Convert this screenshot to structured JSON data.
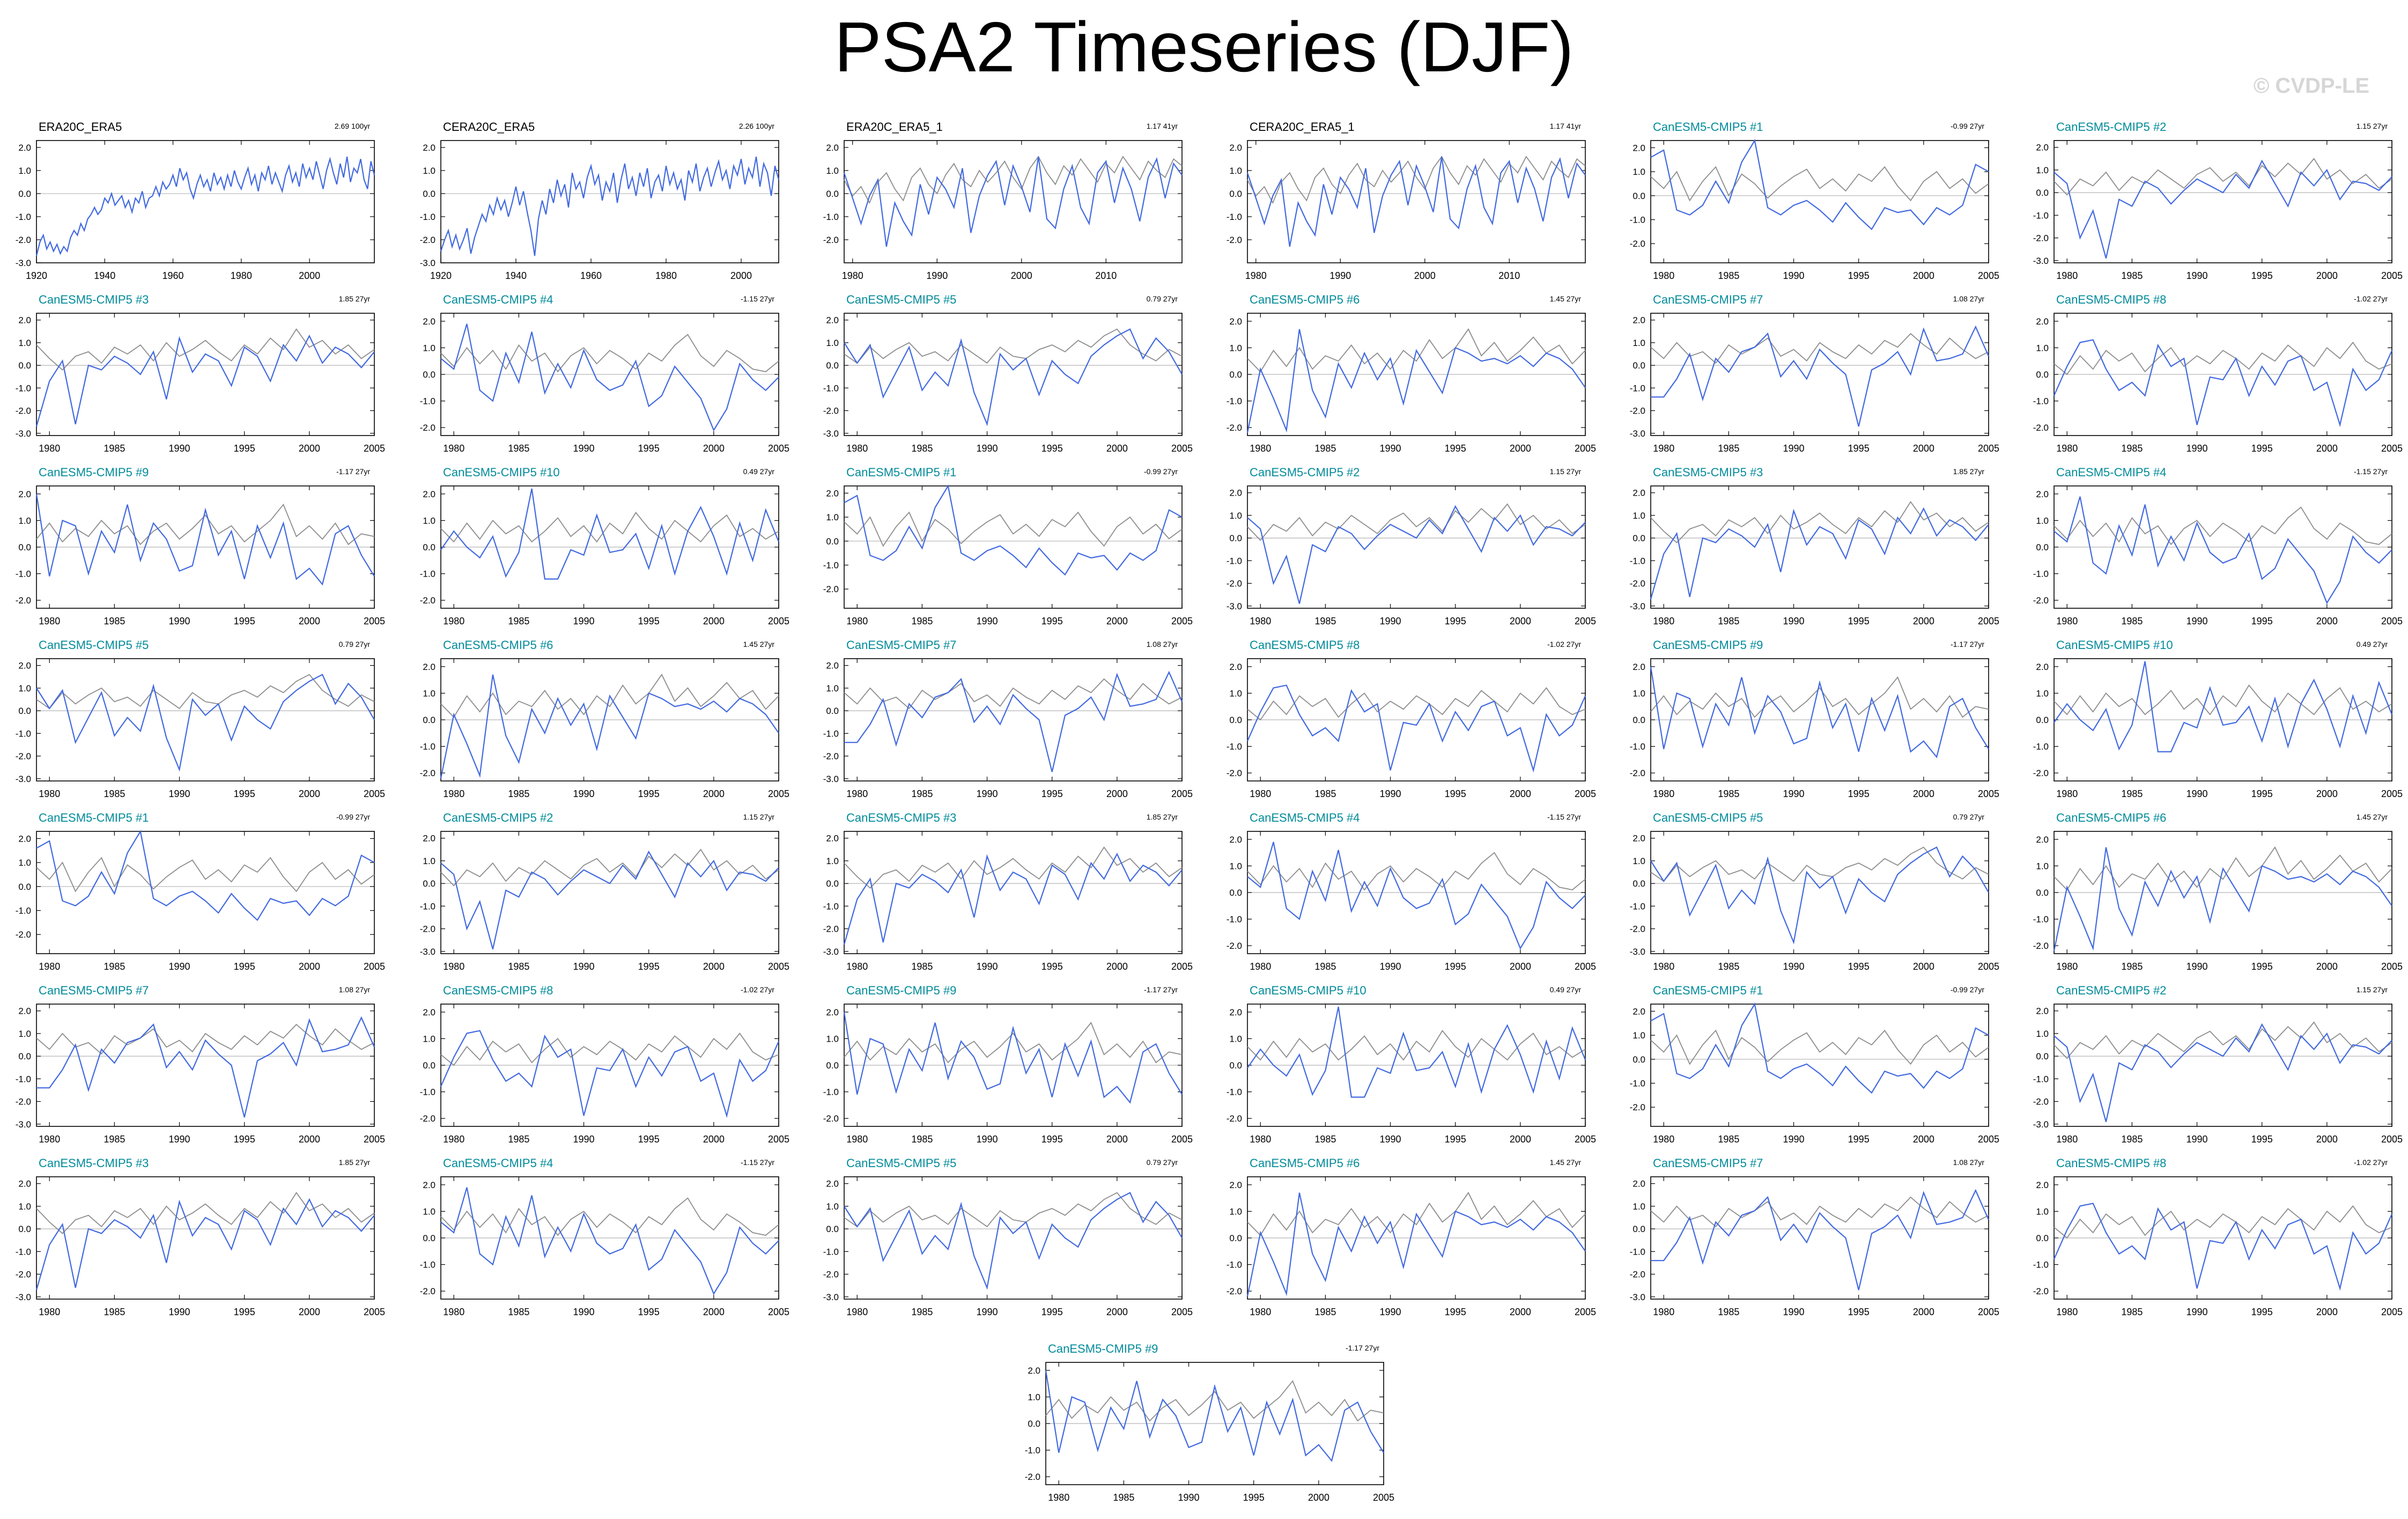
{
  "page": {
    "title": "PSA2 Timeseries (DJF)",
    "watermark": "© CVDP-LE"
  },
  "colors": {
    "observed": "#4169e1",
    "reference": "#8c8c8c",
    "member_title": "#008b9a",
    "obs_title": "#000000",
    "zero_line": "#b4b4b4"
  },
  "series_style": {
    "CanESM5-CMIP5": "member",
    "ERA20C_ERA5": "obs",
    "CERA20C_ERA5": "obs",
    "ERA20C_ERA5_1": "obs",
    "CERA20C_ERA5_1": "obs"
  },
  "chart_data": [
    {
      "type": "line",
      "title": "ERA20C_ERA5",
      "trend": "2.69 100yr",
      "x_start": 1920,
      "x_end": 2019,
      "xticks": [
        1920,
        1940,
        1960,
        1980,
        2000
      ],
      "ylim": [
        -3,
        2.3
      ],
      "yticks": [
        2,
        1,
        0,
        -1,
        -2,
        -3
      ],
      "values": [
        -2.7,
        -2.1,
        -1.8,
        -2.4,
        -2.1,
        -2.5,
        -2.2,
        -2.6,
        -2.3,
        -2.5,
        -1.9,
        -1.6,
        -1.8,
        -1.3,
        -1.6,
        -1.1,
        -0.9,
        -0.6,
        -0.9,
        -0.7,
        -0.2,
        -0.4,
        0,
        -0.5,
        -0.3,
        -0.1,
        -0.6,
        -0.3,
        -0.8,
        -0.2,
        -0.4,
        0.1,
        -0.6,
        -0.2,
        -0.1,
        0.3,
        -0.1,
        0.5,
        0.2,
        0.4,
        0.8,
        0.3,
        1.1,
        0.6,
        0.9,
        0.2,
        -0.2,
        0.4,
        0.8,
        0.3,
        0.6,
        0.1,
        0.9,
        0.4,
        0.7,
        0.2,
        0.8,
        0.3,
        1.0,
        0.5,
        0.2,
        0.7,
        1.1,
        0.4,
        0.8,
        0.1,
        0.9,
        0.6,
        1.2,
        0.4,
        0.9,
        0.5,
        0.1,
        0.8,
        1.2,
        0.5,
        0.9,
        0.3,
        1.3,
        0.7,
        1.1,
        0.6,
        1.4,
        0.8,
        0.2,
        1.0,
        1.5,
        0.9,
        0.4,
        1.3,
        0.7,
        1.6,
        0.5,
        1.1,
        0.9,
        1.5,
        0.6,
        0.2,
        1.4,
        0.8
      ],
      "ref": []
    },
    {
      "type": "line",
      "title": "CERA20C_ERA5",
      "trend": "2.26 100yr",
      "x_start": 1920,
      "x_end": 2010,
      "xticks": [
        1920,
        1940,
        1960,
        1980,
        2000
      ],
      "ylim": [
        -3,
        2.3
      ],
      "yticks": [
        2,
        1,
        0,
        -1,
        -2,
        -3
      ],
      "values": [
        -2.5,
        -2.0,
        -1.6,
        -2.3,
        -1.8,
        -2.4,
        -2.0,
        -1.5,
        -2.6,
        -1.9,
        -1.4,
        -0.9,
        -1.2,
        -0.5,
        -0.9,
        -0.2,
        -0.7,
        -0.3,
        -1.0,
        -0.4,
        0.3,
        -0.5,
        0.1,
        -0.8,
        -1.6,
        -2.7,
        -1.1,
        -0.3,
        -0.9,
        0.2,
        -0.4,
        0.6,
        -0.1,
        0.4,
        -0.6,
        0.9,
        0.2,
        0.5,
        -0.2,
        0.7,
        1.2,
        0.4,
        0.8,
        -0.3,
        0.5,
        0.1,
        0.9,
        -0.4,
        0.6,
        1.3,
        0.2,
        0.7,
        -0.1,
        0.9,
        0.3,
        1.1,
        -0.2,
        0.5,
        0.8,
        0.1,
        1.2,
        0.4,
        0.9,
        0.2,
        0.6,
        -0.3,
        1.0,
        0.5,
        1.3,
        0.1,
        0.7,
        1.1,
        0.3,
        0.9,
        1.4,
        0.6,
        1.0,
        0.2,
        1.2,
        0.8,
        1.5,
        0.4,
        1.1,
        0.7,
        1.6,
        0.3,
        1.3,
        0.9,
        -0.1,
        1.2,
        0.6
      ],
      "ref": []
    },
    {
      "type": "line",
      "title": "ERA20C_ERA5_1",
      "trend": "1.17 41yr",
      "x_start": 1979,
      "x_end": 2019,
      "xticks": [
        1980,
        1990,
        2000,
        2010
      ],
      "ylim": [
        -3,
        2.3
      ],
      "yticks": [
        2,
        1,
        0,
        -1,
        -2
      ],
      "values": [
        0.9,
        -0.2,
        -1.3,
        -0.1,
        0.6,
        -2.3,
        -0.4,
        -1.2,
        -1.8,
        0.4,
        -0.9,
        0.7,
        0.2,
        -0.6,
        1.1,
        -1.7,
        -0.1,
        0.8,
        1.4,
        -0.5,
        1.2,
        0.3,
        -0.8,
        1.6,
        -1.1,
        -1.5,
        0.2,
        1.2,
        -0.6,
        -1.3,
        0.9,
        1.4,
        -0.4,
        1.1,
        0.2,
        -1.2,
        0.7,
        1.5,
        -0.2,
        1.3,
        0.8
      ],
      "ref": [
        0.6,
        -0.1,
        0.3,
        -0.4,
        0.5,
        0.9,
        0.2,
        -0.3,
        0.7,
        1.1,
        0.4,
        0.0,
        0.8,
        1.3,
        0.6,
        0.3,
        1.0,
        0.5,
        0.9,
        1.4,
        0.7,
        0.2,
        1.1,
        1.6,
        0.9,
        0.4,
        1.2,
        0.8,
        1.5,
        1.0,
        0.5,
        1.3,
        0.9,
        1.6,
        1.1,
        0.6,
        1.4,
        1.0,
        0.7,
        1.5,
        1.2
      ]
    },
    {
      "type": "line",
      "title": "CERA20C_ERA5_1",
      "trend": "1.17 41yr",
      "x_start": 1979,
      "x_end": 2019,
      "xticks": [
        1980,
        1990,
        2000,
        2010
      ],
      "ylim": [
        -3,
        2.3
      ],
      "yticks": [
        2,
        1,
        0,
        -1,
        -2
      ],
      "values": [
        0.9,
        -0.2,
        -1.3,
        -0.1,
        0.6,
        -2.3,
        -0.4,
        -1.2,
        -1.8,
        0.4,
        -0.9,
        0.7,
        0.2,
        -0.6,
        1.1,
        -1.7,
        -0.1,
        0.8,
        1.4,
        -0.5,
        1.2,
        0.3,
        -0.8,
        1.6,
        -1.1,
        -1.5,
        0.2,
        1.2,
        -0.6,
        -1.3,
        0.9,
        1.4,
        -0.4,
        1.1,
        0.2,
        -1.2,
        0.7,
        1.5,
        -0.2,
        1.3,
        0.8
      ],
      "ref": [
        0.6,
        -0.1,
        0.3,
        -0.4,
        0.5,
        0.9,
        0.2,
        -0.3,
        0.7,
        1.1,
        0.4,
        0.0,
        0.8,
        1.3,
        0.6,
        0.3,
        1.0,
        0.5,
        0.9,
        1.4,
        0.7,
        0.2,
        1.1,
        1.6,
        0.9,
        0.4,
        1.2,
        0.8,
        1.5,
        1.0,
        0.5,
        1.3,
        0.9,
        1.6,
        1.1,
        0.6,
        1.4,
        1.0,
        0.7,
        1.5,
        1.2
      ]
    },
    {
      "type": "line",
      "title": "CanESM5-CMIP5 #1",
      "trend": "-0.99 27yr",
      "x_start": 1979,
      "x_end": 2005,
      "xticks": [
        1980,
        1985,
        1990,
        1995,
        2000,
        2005
      ],
      "ylim": [
        -2.8,
        2.3
      ],
      "yticks": [
        2,
        1,
        0,
        -1,
        -2
      ],
      "values": [
        1.6,
        1.9,
        -0.6,
        -0.8,
        -0.4,
        0.6,
        -0.3,
        1.4,
        2.3,
        -0.5,
        -0.8,
        -0.4,
        -0.2,
        -0.6,
        -1.1,
        -0.3,
        -0.9,
        -1.4,
        -0.5,
        -0.7,
        -0.6,
        -1.2,
        -0.5,
        -0.8,
        -0.4,
        1.3,
        1.0
      ],
      "ref": [
        0.8,
        0.3,
        1.0,
        -0.2,
        0.6,
        1.2,
        0.0,
        0.9,
        0.5,
        -0.1,
        0.4,
        0.8,
        1.1,
        0.3,
        0.7,
        0.2,
        0.9,
        0.6,
        1.2,
        0.4,
        -0.2,
        0.6,
        1.0,
        0.3,
        0.7,
        0.1,
        0.5
      ]
    },
    {
      "type": "line",
      "title": "CanESM5-CMIP5 #2",
      "trend": "1.15 27yr",
      "x_start": 1979,
      "x_end": 2005,
      "xticks": [
        1980,
        1985,
        1990,
        1995,
        2000,
        2005
      ],
      "ylim": [
        -3.1,
        2.3
      ],
      "yticks": [
        2,
        1,
        0,
        -1,
        -2,
        -3
      ],
      "values": [
        0.9,
        0.4,
        -2.0,
        -0.8,
        -2.9,
        -0.3,
        -0.6,
        0.5,
        0.2,
        -0.5,
        0.1,
        0.6,
        0.3,
        0.0,
        0.8,
        0.2,
        1.4,
        0.4,
        -0.6,
        0.9,
        0.3,
        1.0,
        -0.3,
        0.5,
        0.4,
        0.1,
        0.7
      ],
      "ref": [
        0.5,
        -0.1,
        0.6,
        0.3,
        0.9,
        0.1,
        0.7,
        0.4,
        1.0,
        0.6,
        0.2,
        0.8,
        1.1,
        0.5,
        0.9,
        0.3,
        1.2,
        0.7,
        1.3,
        0.8,
        1.5,
        0.6,
        1.0,
        0.4,
        0.8,
        0.2,
        0.6
      ]
    },
    {
      "type": "line",
      "title": "CanESM5-CMIP5 #3",
      "trend": "1.85 27yr",
      "x_start": 1979,
      "x_end": 2005,
      "xticks": [
        1980,
        1985,
        1990,
        1995,
        2000,
        2005
      ],
      "ylim": [
        -3.1,
        2.3
      ],
      "yticks": [
        2,
        1,
        0,
        -1,
        -2,
        -3
      ],
      "values": [
        -2.7,
        -0.7,
        0.2,
        -2.6,
        0.0,
        -0.2,
        0.4,
        0.1,
        -0.4,
        0.6,
        -1.5,
        1.2,
        -0.3,
        0.5,
        0.2,
        -0.9,
        0.8,
        0.4,
        -0.7,
        0.9,
        0.2,
        1.3,
        0.1,
        0.8,
        0.5,
        -0.1,
        0.6
      ],
      "ref": [
        0.9,
        0.3,
        -0.2,
        0.4,
        0.6,
        0.1,
        0.8,
        0.5,
        0.9,
        0.2,
        1.0,
        0.4,
        0.7,
        1.1,
        0.6,
        0.2,
        0.9,
        0.5,
        1.2,
        0.7,
        1.6,
        0.8,
        1.1,
        0.5,
        0.9,
        0.3,
        0.7
      ]
    },
    {
      "type": "line",
      "title": "CanESM5-CMIP5 #4",
      "trend": "-1.15 27yr",
      "x_start": 1979,
      "x_end": 2005,
      "xticks": [
        1980,
        1985,
        1990,
        1995,
        2000,
        2005
      ],
      "ylim": [
        -2.3,
        2.3
      ],
      "yticks": [
        2,
        1,
        0,
        -1,
        -2
      ],
      "values": [
        0.6,
        0.2,
        1.9,
        -0.6,
        -1.0,
        0.8,
        -0.3,
        1.6,
        -0.7,
        0.4,
        -0.5,
        0.9,
        -0.2,
        -0.6,
        -0.4,
        0.5,
        -1.2,
        -0.8,
        0.3,
        -0.3,
        -0.9,
        -2.1,
        -1.3,
        0.4,
        -0.2,
        -0.6,
        -0.1
      ],
      "ref": [
        0.8,
        0.3,
        1.0,
        0.4,
        0.9,
        0.2,
        1.1,
        0.5,
        0.8,
        0.1,
        0.7,
        1.0,
        0.4,
        0.9,
        0.6,
        0.2,
        0.8,
        0.5,
        1.1,
        1.5,
        0.7,
        0.3,
        0.9,
        0.6,
        0.2,
        0.1,
        0.5
      ]
    },
    {
      "type": "line",
      "title": "CanESM5-CMIP5 #5",
      "trend": "0.79 27yr",
      "x_start": 1979,
      "x_end": 2005,
      "xticks": [
        1980,
        1985,
        1990,
        1995,
        2000,
        2005
      ],
      "ylim": [
        -3.1,
        2.3
      ],
      "yticks": [
        2,
        1,
        0,
        -1,
        -2,
        -3
      ],
      "values": [
        1.0,
        0.1,
        0.9,
        -1.4,
        -0.3,
        0.8,
        -1.1,
        -0.3,
        -0.9,
        1.1,
        -1.2,
        -2.6,
        0.5,
        -0.2,
        0.3,
        -1.3,
        0.2,
        -0.4,
        -0.8,
        0.4,
        0.9,
        1.3,
        1.6,
        0.3,
        1.2,
        0.6,
        -0.4
      ],
      "ref": [
        0.5,
        0.1,
        0.8,
        0.3,
        0.7,
        1.0,
        0.4,
        0.6,
        0.2,
        0.9,
        0.5,
        0.1,
        0.8,
        0.4,
        0.3,
        0.7,
        0.9,
        0.6,
        1.1,
        0.8,
        1.3,
        1.6,
        0.9,
        0.5,
        0.2,
        0.7,
        0.4
      ]
    },
    {
      "type": "line",
      "title": "CanESM5-CMIP5 #6",
      "trend": "1.45 27yr",
      "x_start": 1979,
      "x_end": 2005,
      "xticks": [
        1980,
        1985,
        1990,
        1995,
        2000,
        2005
      ],
      "ylim": [
        -2.3,
        2.3
      ],
      "yticks": [
        2,
        1,
        0,
        -1,
        -2
      ],
      "values": [
        -2.2,
        0.2,
        -0.9,
        -2.1,
        1.7,
        -0.6,
        -1.6,
        0.4,
        -0.5,
        0.8,
        -0.2,
        0.6,
        -1.1,
        0.9,
        0.1,
        -0.7,
        1.0,
        0.8,
        0.5,
        0.6,
        0.4,
        0.7,
        0.3,
        0.8,
        0.6,
        0.2,
        -0.5
      ],
      "ref": [
        0.6,
        0.1,
        0.9,
        0.3,
        1.0,
        0.2,
        0.7,
        0.5,
        1.1,
        0.4,
        0.8,
        0.2,
        0.9,
        0.5,
        1.3,
        0.6,
        1.0,
        1.7,
        0.7,
        1.2,
        0.5,
        0.9,
        1.4,
        0.8,
        1.1,
        0.4,
        0.9
      ]
    },
    {
      "type": "line",
      "title": "CanESM5-CMIP5 #7",
      "trend": "1.08 27yr",
      "x_start": 1979,
      "x_end": 2005,
      "xticks": [
        1980,
        1985,
        1990,
        1995,
        2000,
        2005
      ],
      "ylim": [
        -3.1,
        2.3
      ],
      "yticks": [
        2,
        1,
        0,
        -1,
        -2,
        -3
      ],
      "values": [
        -1.4,
        -1.4,
        -0.6,
        0.5,
        -1.5,
        0.3,
        -0.3,
        0.6,
        0.8,
        1.4,
        -0.5,
        0.2,
        -0.6,
        0.7,
        0.1,
        -0.4,
        -2.7,
        -0.2,
        0.1,
        0.6,
        -0.4,
        1.6,
        0.2,
        0.3,
        0.5,
        1.7,
        0.4
      ],
      "ref": [
        0.8,
        0.3,
        1.0,
        0.4,
        0.6,
        0.1,
        0.9,
        0.5,
        0.8,
        1.2,
        0.4,
        0.7,
        0.2,
        1.0,
        0.6,
        0.3,
        0.9,
        0.5,
        1.1,
        0.8,
        1.4,
        0.9,
        0.5,
        1.2,
        0.7,
        0.3,
        0.6
      ]
    },
    {
      "type": "line",
      "title": "CanESM5-CMIP5 #8",
      "trend": "-1.02 27yr",
      "x_start": 1979,
      "x_end": 2005,
      "xticks": [
        1980,
        1985,
        1990,
        1995,
        2000,
        2005
      ],
      "ylim": [
        -2.3,
        2.3
      ],
      "yticks": [
        2,
        1,
        0,
        -1,
        -2
      ],
      "values": [
        -0.8,
        0.3,
        1.2,
        1.3,
        0.2,
        -0.6,
        -0.3,
        -0.8,
        1.1,
        0.3,
        0.6,
        -1.9,
        -0.1,
        -0.2,
        0.6,
        -0.8,
        0.3,
        -0.4,
        0.5,
        0.7,
        -0.6,
        -0.3,
        -1.9,
        0.2,
        -0.6,
        -0.2,
        0.9
      ],
      "ref": [
        0.4,
        0.0,
        0.7,
        0.2,
        0.9,
        0.5,
        0.8,
        0.1,
        0.6,
        1.0,
        0.3,
        0.7,
        0.4,
        0.9,
        0.6,
        0.2,
        0.8,
        0.5,
        1.1,
        0.7,
        0.3,
        1.0,
        0.6,
        1.2,
        0.5,
        0.2,
        0.4
      ]
    },
    {
      "type": "line",
      "title": "CanESM5-CMIP5 #9",
      "trend": "-1.17 27yr",
      "x_start": 1979,
      "x_end": 2005,
      "xticks": [
        1980,
        1985,
        1990,
        1995,
        2000,
        2005
      ],
      "ylim": [
        -2.3,
        2.3
      ],
      "yticks": [
        2,
        1,
        0,
        -1,
        -2
      ],
      "values": [
        2.0,
        -1.1,
        1.0,
        0.8,
        -1.0,
        0.6,
        -0.2,
        1.6,
        -0.5,
        0.9,
        0.3,
        -0.9,
        -0.7,
        1.4,
        -0.3,
        0.6,
        -1.2,
        0.8,
        -0.4,
        0.9,
        -1.2,
        -0.8,
        -1.4,
        0.5,
        0.8,
        -0.3,
        -1.1
      ],
      "ref": [
        0.3,
        0.9,
        0.2,
        0.7,
        0.4,
        1.0,
        0.5,
        0.8,
        0.1,
        0.6,
        0.9,
        0.3,
        0.7,
        1.2,
        0.5,
        0.8,
        0.2,
        0.6,
        1.0,
        1.6,
        0.4,
        0.8,
        0.3,
        0.9,
        0.1,
        0.5,
        0.4
      ]
    },
    {
      "type": "line",
      "title": "CanESM5-CMIP5 #10",
      "trend": "0.49 27yr",
      "x_start": 1979,
      "x_end": 2005,
      "xticks": [
        1980,
        1985,
        1990,
        1995,
        2000,
        2005
      ],
      "ylim": [
        -2.3,
        2.3
      ],
      "yticks": [
        2,
        1,
        0,
        -1,
        -2
      ],
      "values": [
        -0.1,
        0.6,
        0.0,
        -0.4,
        0.4,
        -1.1,
        -0.2,
        2.2,
        -1.2,
        -1.2,
        -0.1,
        -0.3,
        1.2,
        -0.2,
        -0.1,
        0.5,
        -0.8,
        0.8,
        -1.0,
        0.6,
        1.5,
        0.4,
        -1.0,
        0.9,
        -0.5,
        1.4,
        0.2
      ],
      "ref": [
        0.7,
        0.2,
        0.9,
        0.3,
        1.0,
        0.5,
        0.8,
        0.2,
        0.6,
        1.1,
        0.4,
        0.8,
        0.2,
        0.9,
        0.5,
        1.3,
        0.7,
        0.3,
        1.0,
        0.6,
        0.2,
        0.8,
        1.2,
        0.4,
        0.7,
        0.3,
        0.6
      ]
    }
  ],
  "layout": {
    "panel_order": [
      0,
      1,
      2,
      3,
      4,
      5,
      6,
      7,
      8,
      9,
      10,
      11,
      12,
      13,
      4,
      5,
      6,
      7,
      8,
      9,
      10,
      11,
      12,
      13,
      4,
      5,
      6,
      7,
      8,
      9,
      10,
      11,
      12,
      13,
      4,
      5,
      6,
      7,
      8,
      9,
      10,
      11,
      12
    ]
  }
}
